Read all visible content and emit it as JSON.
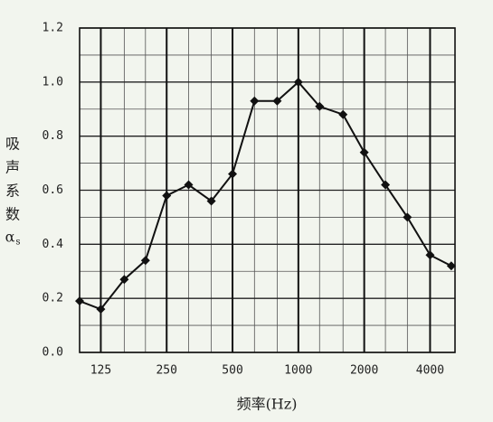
{
  "chart_data": {
    "type": "line",
    "xscale": "log",
    "x": [
      100,
      125,
      160,
      200,
      250,
      315,
      400,
      500,
      630,
      800,
      1000,
      1250,
      1600,
      2000,
      2500,
      3150,
      4000,
      5000
    ],
    "values": [
      0.19,
      0.16,
      0.27,
      0.34,
      0.58,
      0.62,
      0.56,
      0.66,
      0.93,
      0.93,
      1.0,
      0.91,
      0.88,
      0.74,
      0.62,
      0.5,
      0.36,
      0.32
    ],
    "color": "#111111",
    "xlim": [
      100,
      5200
    ],
    "xticks": [
      125,
      250,
      500,
      1000,
      2000,
      4000
    ],
    "xminor": [
      160,
      200,
      315,
      400,
      630,
      800,
      1250,
      1600,
      2500,
      3150
    ],
    "ylim": [
      0,
      1.2
    ],
    "yticks": [
      {
        "value": 0,
        "label": "0.0"
      },
      0.2,
      0.4,
      0.6,
      0.8,
      {
        "value": 1,
        "label": "1.0"
      },
      1.2
    ],
    "yminor": [
      0.1,
      0.3,
      0.5,
      0.7,
      0.9,
      1.1
    ],
    "grid": true,
    "xlabel": "频率(Hz)",
    "ylabel": {
      "chars": [
        "吸",
        "声",
        "系",
        "数"
      ],
      "symbol": "α",
      "subscript": "s"
    }
  }
}
